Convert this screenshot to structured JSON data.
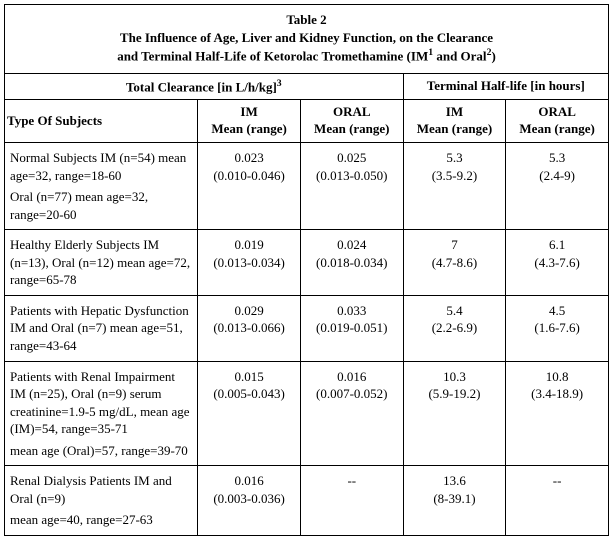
{
  "table": {
    "number": "Table 2",
    "title_line1": "The Influence of Age, Liver and Kidney Function, on the Clearance",
    "title_line2_pre": "and Terminal Half-Life of Ketorolac Tromethamine (IM",
    "title_line2_sup1": "1",
    "title_line2_mid": " and Oral",
    "title_line2_sup2": "2",
    "title_line2_post": ")",
    "section_headers": {
      "clearance_pre": "Total Clearance [in L/h/kg]",
      "clearance_sup": "3",
      "halflife": "Terminal Half-life [in hours]"
    },
    "col_headers": {
      "subjects": "Type Of Subjects",
      "im_label": "IM",
      "oral_label": "ORAL",
      "mean_range": "Mean (range)"
    },
    "rows": [
      {
        "desc": "Normal Subjects IM (n=54) mean age=32, range=18-60",
        "desc_line2": "Oral (n=77) mean age=32, range=20-60",
        "im_clear_mean": "0.023",
        "im_clear_range": "(0.010-0.046)",
        "oral_clear_mean": "0.025",
        "oral_clear_range": "(0.013-0.050)",
        "im_hl_mean": "5.3",
        "im_hl_range": "(3.5-9.2)",
        "oral_hl_mean": "5.3",
        "oral_hl_range": "(2.4-9)"
      },
      {
        "desc": "Healthy Elderly Subjects IM (n=13), Oral (n=12) mean age=72, range=65-78",
        "desc_line2": "",
        "im_clear_mean": "0.019",
        "im_clear_range": "(0.013-0.034)",
        "oral_clear_mean": "0.024",
        "oral_clear_range": "(0.018-0.034)",
        "im_hl_mean": "7",
        "im_hl_range": "(4.7-8.6)",
        "oral_hl_mean": "6.1",
        "oral_hl_range": "(4.3-7.6)"
      },
      {
        "desc": "Patients with Hepatic Dysfunction IM and Oral (n=7) mean age=51, range=43-64",
        "desc_line2": "",
        "im_clear_mean": "0.029",
        "im_clear_range": "(0.013-0.066)",
        "oral_clear_mean": "0.033",
        "oral_clear_range": "(0.019-0.051)",
        "im_hl_mean": "5.4",
        "im_hl_range": "(2.2-6.9)",
        "oral_hl_mean": "4.5",
        "oral_hl_range": "(1.6-7.6)"
      },
      {
        "desc": "Patients with Renal Impairment IM (n=25), Oral (n=9) serum creatinine=1.9-5 mg/dL, mean age (IM)=54, range=35-71",
        "desc_line2": "mean age (Oral)=57, range=39-70",
        "im_clear_mean": "0.015",
        "im_clear_range": "(0.005-0.043)",
        "oral_clear_mean": "0.016",
        "oral_clear_range": "(0.007-0.052)",
        "im_hl_mean": "10.3",
        "im_hl_range": "(5.9-19.2)",
        "oral_hl_mean": "10.8",
        "oral_hl_range": "(3.4-18.9)"
      },
      {
        "desc": "Renal Dialysis Patients IM and Oral (n=9)",
        "desc_line2": "mean age=40, range=27-63",
        "im_clear_mean": "0.016",
        "im_clear_range": "(0.003-0.036)",
        "oral_clear_mean": "--",
        "oral_clear_range": "",
        "im_hl_mean": "13.6",
        "im_hl_range": "(8-39.1)",
        "oral_hl_mean": "--",
        "oral_hl_range": ""
      }
    ],
    "colwidths": [
      "32%",
      "17%",
      "17%",
      "17%",
      "17%"
    ]
  }
}
